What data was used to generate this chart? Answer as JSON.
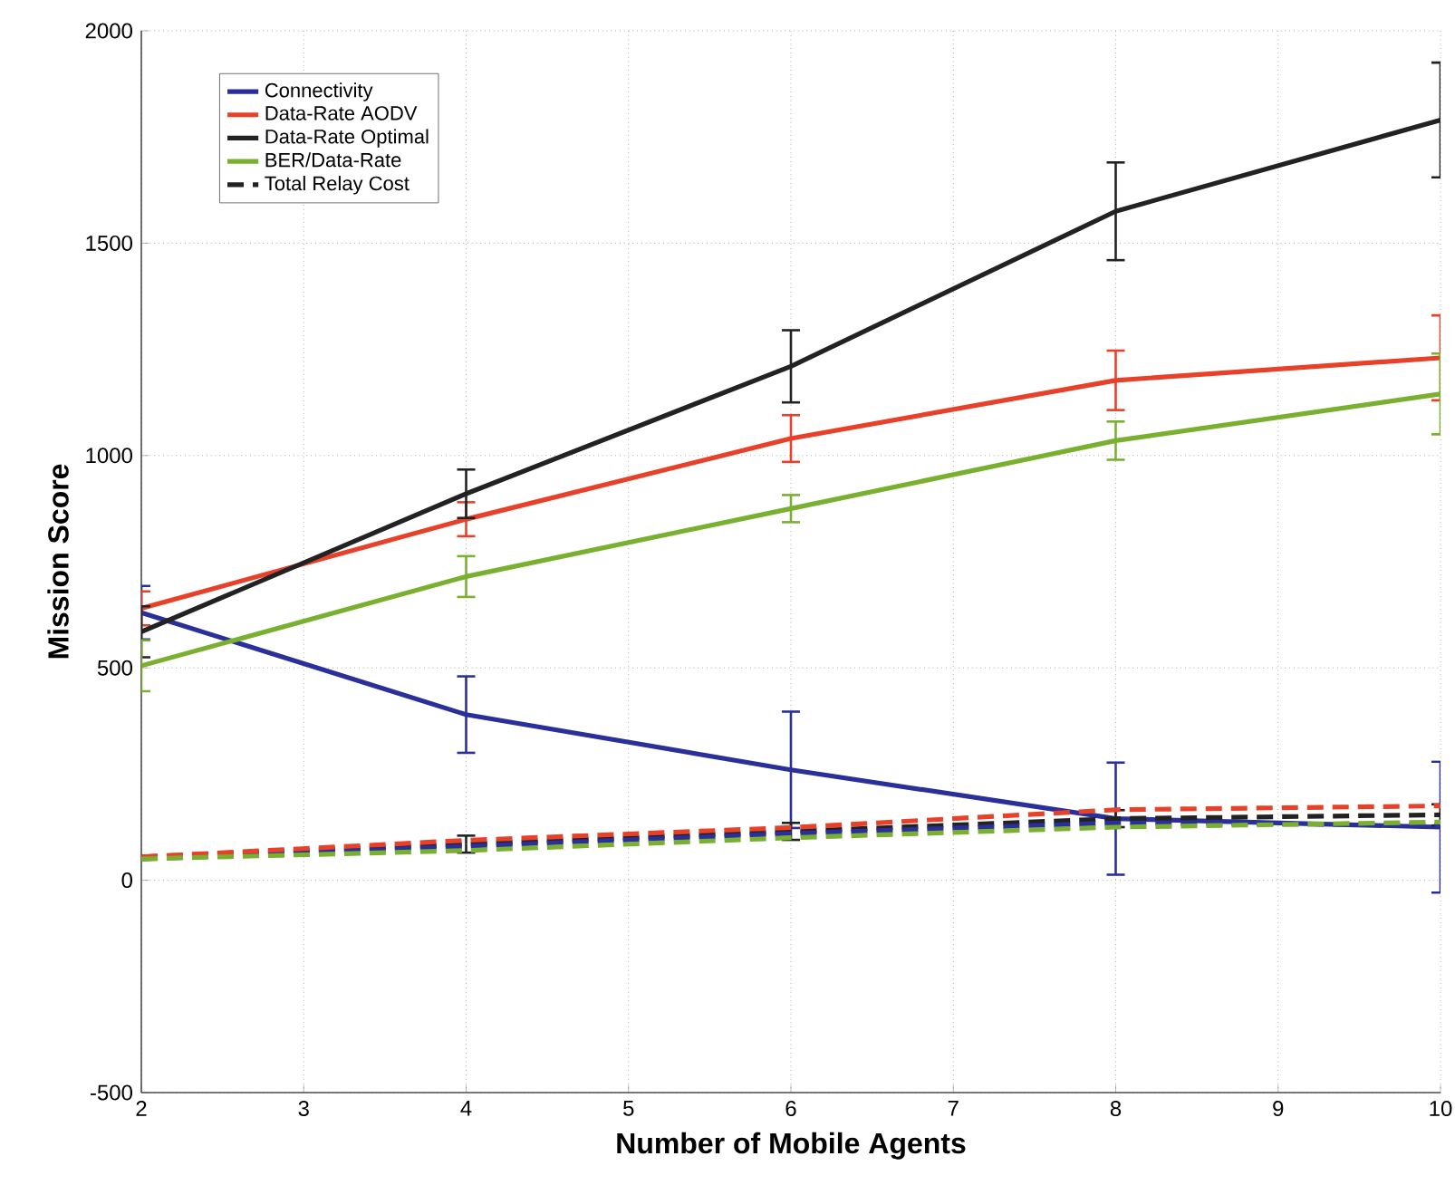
{
  "chart_data": {
    "type": "line",
    "xlabel": "Number of Mobile Agents",
    "ylabel": "Mission Score",
    "x": [
      2,
      4,
      6,
      8,
      10
    ],
    "xlim": [
      2,
      10
    ],
    "xticks": [
      2,
      3,
      4,
      5,
      6,
      7,
      8,
      9,
      10
    ],
    "ylim": [
      -500,
      2000
    ],
    "yticks": [
      -500,
      0,
      500,
      1000,
      1500,
      2000
    ],
    "grid": true,
    "legend": "top left",
    "series": [
      {
        "name": "Connectivity",
        "color": "#2b2f9a",
        "values": [
          630,
          390,
          260,
          145,
          125
        ],
        "errors": [
          63,
          90,
          137,
          132,
          154
        ]
      },
      {
        "name": "Data-Rate AODV",
        "color": "#e8412a",
        "values": [
          640,
          850,
          1040,
          1177,
          1230
        ],
        "errors": [
          40,
          40,
          55,
          70,
          100
        ]
      },
      {
        "name": "Data-Rate Optimal",
        "color": "#222222",
        "values": [
          585,
          910,
          1210,
          1575,
          1790
        ],
        "errors": [
          60,
          57,
          85,
          115,
          135
        ]
      },
      {
        "name": "BER/Data-Rate",
        "color": "#7ab030",
        "values": [
          505,
          715,
          875,
          1035,
          1145
        ],
        "errors": [
          60,
          48,
          32,
          45,
          95
        ]
      },
      {
        "name": "Total Relay Cost",
        "color": "#222222",
        "line_style": "dashed",
        "values": [
          55,
          85,
          115,
          145,
          154
        ],
        "errors": [
          null,
          20,
          20,
          20,
          25
        ]
      },
      {
        "color": "#2b2f9a",
        "line_style": "dashed",
        "values": [
          50,
          80,
          110,
          135,
          130
        ]
      },
      {
        "color": "#e8412a",
        "line_style": "dashed",
        "values": [
          55,
          94,
          124,
          166,
          175
        ]
      },
      {
        "color": "#7ab030",
        "line_style": "dashed",
        "values": [
          50,
          70,
          100,
          125,
          137
        ]
      }
    ]
  }
}
